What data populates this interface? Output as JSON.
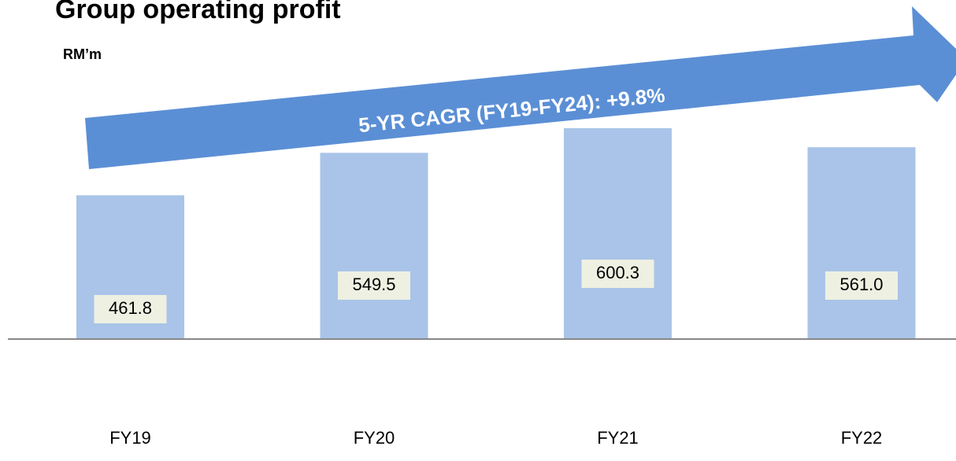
{
  "chart_data": {
    "type": "bar",
    "title": "Group operating profit",
    "subtitle": "RM’m",
    "annotation": "5-YR CAGR (FY19-FY24): +9.8%",
    "categories": [
      "FY19",
      "FY20",
      "FY21",
      "FY22"
    ],
    "values": [
      461.8,
      549.5,
      600.3,
      561.0
    ],
    "value_labels": [
      "461.8",
      "549.5",
      "600.3",
      "561.0"
    ],
    "color": "#a9c4e8",
    "ylim": [
      165,
      865
    ]
  }
}
